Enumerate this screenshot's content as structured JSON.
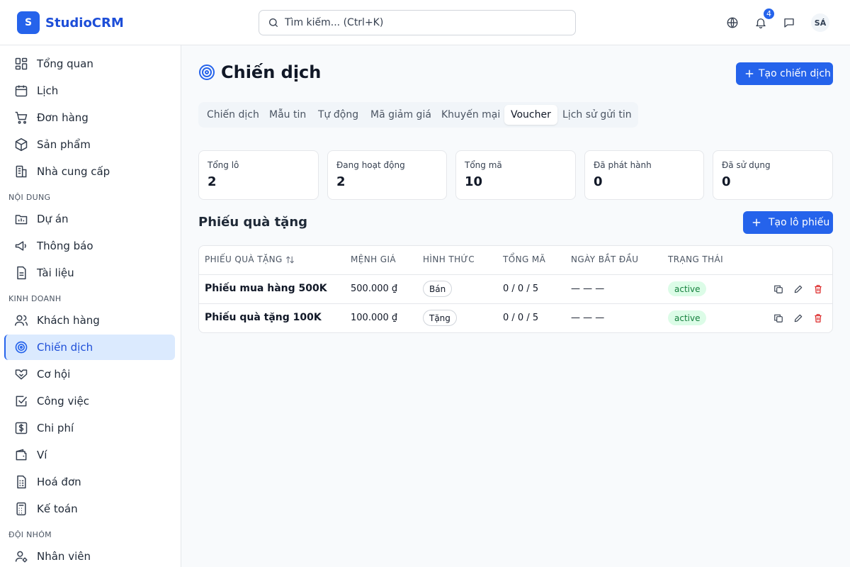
{
  "app": {
    "logo_letter": "S",
    "name": "StudioCRM"
  },
  "search": {
    "placeholder": "Tìm kiếm... (Ctrl+K)"
  },
  "header": {
    "notification_count": "4",
    "avatar_initials": "SÁ"
  },
  "sidebar": {
    "items_main": [
      {
        "label": "Tổng quan",
        "icon": "dashboard-icon"
      },
      {
        "label": "Lịch",
        "icon": "calendar-icon"
      },
      {
        "label": "Đơn hàng",
        "icon": "cart-icon"
      },
      {
        "label": "Sản phẩm",
        "icon": "package-icon"
      },
      {
        "label": "Nhà cung cấp",
        "icon": "building-icon"
      }
    ],
    "section_content": "NỘI DUNG",
    "items_content": [
      {
        "label": "Dự án",
        "icon": "folder-icon"
      },
      {
        "label": "Thông báo",
        "icon": "megaphone-icon"
      },
      {
        "label": "Tài liệu",
        "icon": "document-icon"
      }
    ],
    "section_business": "KINH DOANH",
    "items_business": [
      {
        "label": "Khách hàng",
        "icon": "users-icon"
      },
      {
        "label": "Chiến dịch",
        "icon": "target-icon",
        "active": true
      },
      {
        "label": "Cơ hội",
        "icon": "handshake-icon"
      },
      {
        "label": "Công việc",
        "icon": "checkbox-icon"
      },
      {
        "label": "Chi phí",
        "icon": "dollar-icon"
      },
      {
        "label": "Ví",
        "icon": "wallet-icon"
      },
      {
        "label": "Hoá đơn",
        "icon": "invoice-icon"
      },
      {
        "label": "Kế toán",
        "icon": "calculator-icon"
      }
    ],
    "section_team": "ĐỘI NHÓM",
    "items_team": [
      {
        "label": "Nhân viên",
        "icon": "user-gear-icon"
      }
    ]
  },
  "page": {
    "title": "Chiến dịch",
    "create_button": "Tạo chiến dịch",
    "tabs": [
      "Chiến dịch",
      "Mẫu tin",
      "Tự động",
      "Mã giảm giá",
      "Khuyến mại",
      "Voucher",
      "Lịch sử gửi tin"
    ],
    "active_tab": "Voucher"
  },
  "stats": [
    {
      "label": "Tổng lô",
      "value": "2"
    },
    {
      "label": "Đang hoạt động",
      "value": "2"
    },
    {
      "label": "Tổng mã",
      "value": "10"
    },
    {
      "label": "Đã phát hành",
      "value": "0"
    },
    {
      "label": "Đã sử dụng",
      "value": "0"
    }
  ],
  "vouchers": {
    "title": "Phiếu quà tặng",
    "create_button": "Tạo lô phiếu",
    "columns": [
      "PHIẾU QUÀ TẶNG",
      "MỆNH GIÁ",
      "HÌNH THỨC",
      "TỔNG MÃ",
      "NGÀY BẮT ĐẦU",
      "TRẠNG THÁI"
    ],
    "rows": [
      {
        "name": "Phiếu mua hàng 500K",
        "value": "500.000 ₫",
        "type": "Bán",
        "codes": "0 / 0 / 5",
        "start": "— — —",
        "status": "active"
      },
      {
        "name": "Phiếu quà tặng 100K",
        "value": "100.000 ₫",
        "type": "Tặng",
        "codes": "0 / 0 / 5",
        "start": "— — —",
        "status": "active"
      }
    ]
  },
  "colors": {
    "primary": "#2563eb",
    "active_bg": "#dbeafe",
    "status_bg": "#dcfce7",
    "status_text": "#15803d",
    "delete": "#dc2626"
  }
}
